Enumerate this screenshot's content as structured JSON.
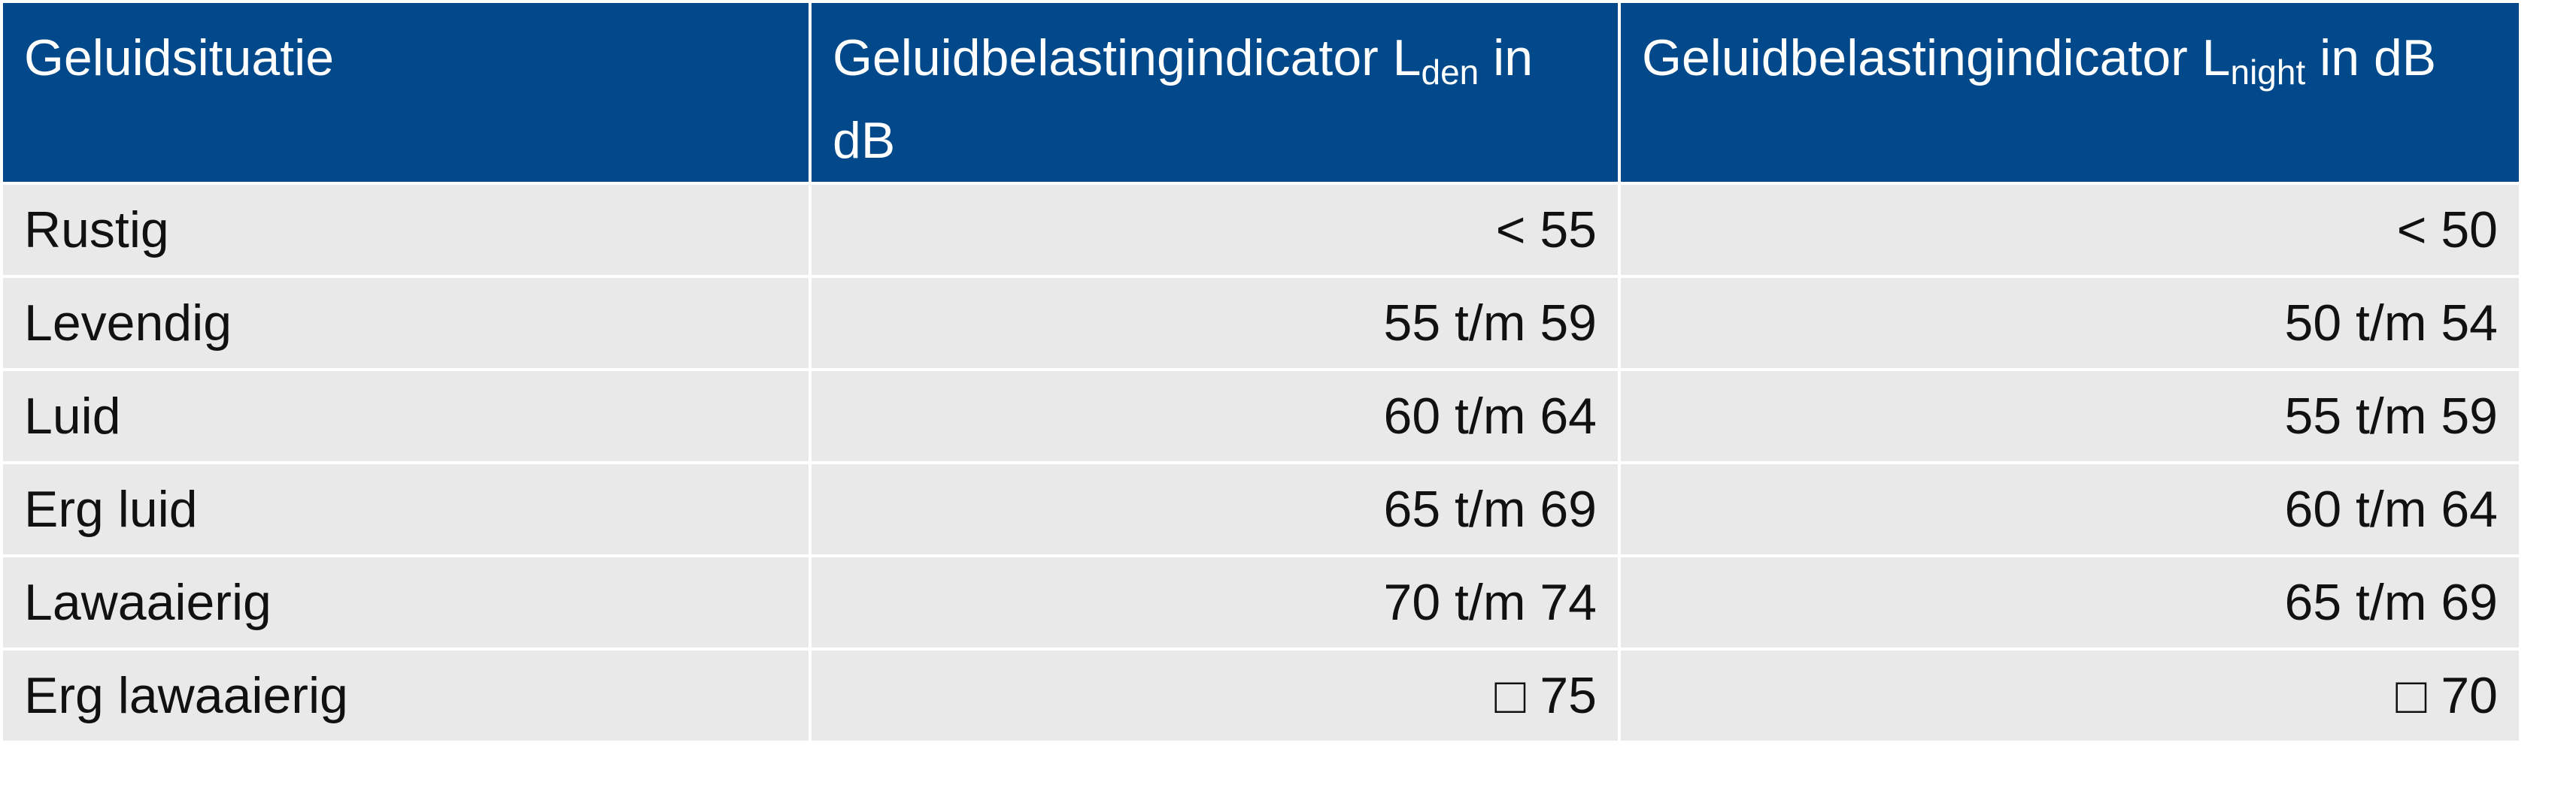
{
  "table": {
    "header": [
      {
        "text": "Geluidsituatie"
      },
      {
        "text": "Geluidbelastingindicator L",
        "subscript": "den",
        "text_after": " in dB"
      },
      {
        "text": "Geluidbelastingindicator L",
        "subscript": "night",
        "text_after": " in dB"
      }
    ],
    "rows": [
      [
        "Rustig",
        "< 55",
        "< 50"
      ],
      [
        "Levendig",
        "55 t/m 59",
        "50 t/m 54"
      ],
      [
        "Luid",
        "60 t/m 64",
        "55 t/m 59"
      ],
      [
        "Erg luid",
        "65 t/m 69",
        "60 t/m 64"
      ],
      [
        "Lawaaierig",
        "70 t/m 74",
        "65 t/m 69"
      ],
      [
        "Erg lawaaierig",
        "□ 75",
        "□ 70"
      ]
    ]
  }
}
